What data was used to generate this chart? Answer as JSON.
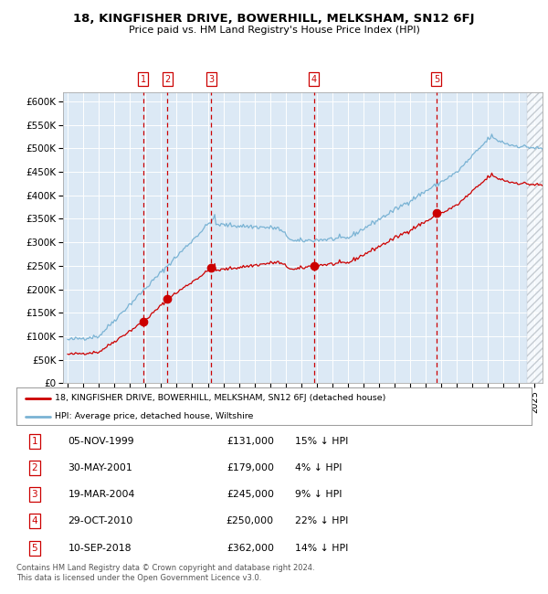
{
  "title": "18, KINGFISHER DRIVE, BOWERHILL, MELKSHAM, SN12 6FJ",
  "subtitle": "Price paid vs. HM Land Registry's House Price Index (HPI)",
  "plot_bg_color": "#dce9f5",
  "hpi_line_color": "#7ab3d4",
  "price_line_color": "#cc0000",
  "marker_color": "#cc0000",
  "ylim": [
    0,
    620000
  ],
  "xlim_start": 1994.7,
  "xlim_end": 2025.5,
  "transactions": [
    {
      "num": 1,
      "date": "05-NOV-1999",
      "year": 1999.84,
      "price": 131000,
      "pct": "15% ↓ HPI"
    },
    {
      "num": 2,
      "date": "30-MAY-2001",
      "year": 2001.41,
      "price": 179000,
      "pct": "4% ↓ HPI"
    },
    {
      "num": 3,
      "date": "19-MAR-2004",
      "year": 2004.21,
      "price": 245000,
      "pct": "9% ↓ HPI"
    },
    {
      "num": 4,
      "date": "29-OCT-2010",
      "year": 2010.83,
      "price": 250000,
      "pct": "22% ↓ HPI"
    },
    {
      "num": 5,
      "date": "10-SEP-2018",
      "year": 2018.69,
      "price": 362000,
      "pct": "14% ↓ HPI"
    }
  ],
  "legend_property_label": "18, KINGFISHER DRIVE, BOWERHILL, MELKSHAM, SN12 6FJ (detached house)",
  "legend_hpi_label": "HPI: Average price, detached house, Wiltshire",
  "footer": "Contains HM Land Registry data © Crown copyright and database right 2024.\nThis data is licensed under the Open Government Licence v3.0.",
  "yticks": [
    0,
    50000,
    100000,
    150000,
    200000,
    250000,
    300000,
    350000,
    400000,
    450000,
    500000,
    550000,
    600000
  ],
  "ytick_labels": [
    "£0",
    "£50K",
    "£100K",
    "£150K",
    "£200K",
    "£250K",
    "£300K",
    "£350K",
    "£400K",
    "£450K",
    "£500K",
    "£550K",
    "£600K"
  ]
}
